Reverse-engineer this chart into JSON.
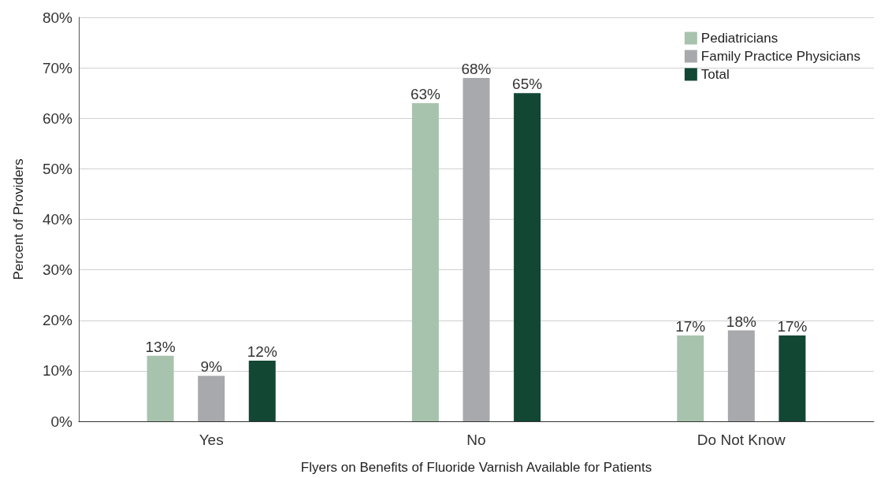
{
  "chart_data": {
    "type": "bar",
    "xlabel": "Flyers on Benefits of Fluoride Varnish Available for Patients",
    "ylabel": "Percent of Providers",
    "categories": [
      "Yes",
      "No",
      "Do Not Know"
    ],
    "series": [
      {
        "name": "Pediatricians",
        "color": "#a8c3ad",
        "values": [
          13,
          63,
          17
        ],
        "value_labels": [
          "13%",
          "63%",
          "17%"
        ]
      },
      {
        "name": "Family Practice Physicians",
        "color": "#a7a9ac",
        "values": [
          9,
          68,
          18
        ],
        "value_labels": [
          "9%",
          "68%",
          "18%"
        ]
      },
      {
        "name": "Total",
        "color": "#124734",
        "values": [
          12,
          65,
          17
        ],
        "value_labels": [
          "12%",
          "65%",
          "17%"
        ]
      }
    ],
    "ylim": [
      0,
      80
    ],
    "yticks": [
      {
        "value": 0,
        "label": "0%"
      },
      {
        "value": 10,
        "label": "10%"
      },
      {
        "value": 20,
        "label": "20%"
      },
      {
        "value": 30,
        "label": "30%"
      },
      {
        "value": 40,
        "label": "40%"
      },
      {
        "value": 50,
        "label": "50%"
      },
      {
        "value": 60,
        "label": "60%"
      },
      {
        "value": 70,
        "label": "70%"
      },
      {
        "value": 80,
        "label": "80%"
      }
    ],
    "grid": "y",
    "legend": "top right"
  }
}
